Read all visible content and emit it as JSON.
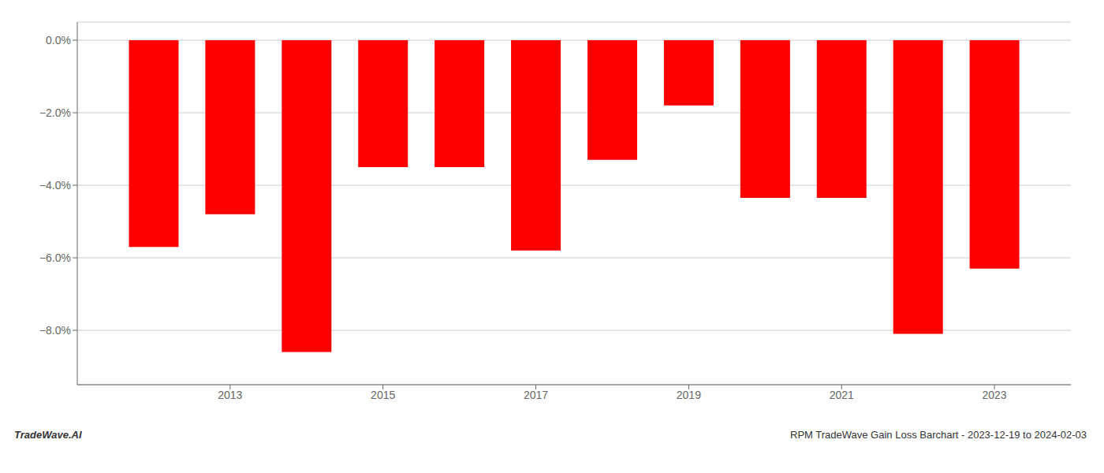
{
  "chart_data": {
    "type": "bar",
    "x": [
      2012,
      2013,
      2014,
      2015,
      2016,
      2017,
      2018,
      2019,
      2020,
      2021,
      2022,
      2023
    ],
    "values": [
      -5.7,
      -4.8,
      -8.6,
      -3.5,
      -3.5,
      -5.8,
      -3.3,
      -1.8,
      -4.35,
      -4.35,
      -8.1,
      -6.3
    ],
    "color": "#ff0000",
    "xlim": [
      2011,
      2024
    ],
    "xticks": [
      2013,
      2015,
      2017,
      2019,
      2021,
      2023
    ],
    "ylim": [
      -9.5,
      0.5
    ],
    "yticks": [
      {
        "value": 0.0,
        "label": "0.0%"
      },
      {
        "value": -2.0,
        "label": "−2.0%"
      },
      {
        "value": -4.0,
        "label": "−4.0%"
      },
      {
        "value": -6.0,
        "label": "−6.0%"
      },
      {
        "value": -8.0,
        "label": "−8.0%"
      }
    ],
    "grid": true,
    "annotations": [
      "TradeWave.AI",
      "RPM TradeWave Gain Loss Barchart - 2023-12-19 to 2024-02-03"
    ]
  }
}
